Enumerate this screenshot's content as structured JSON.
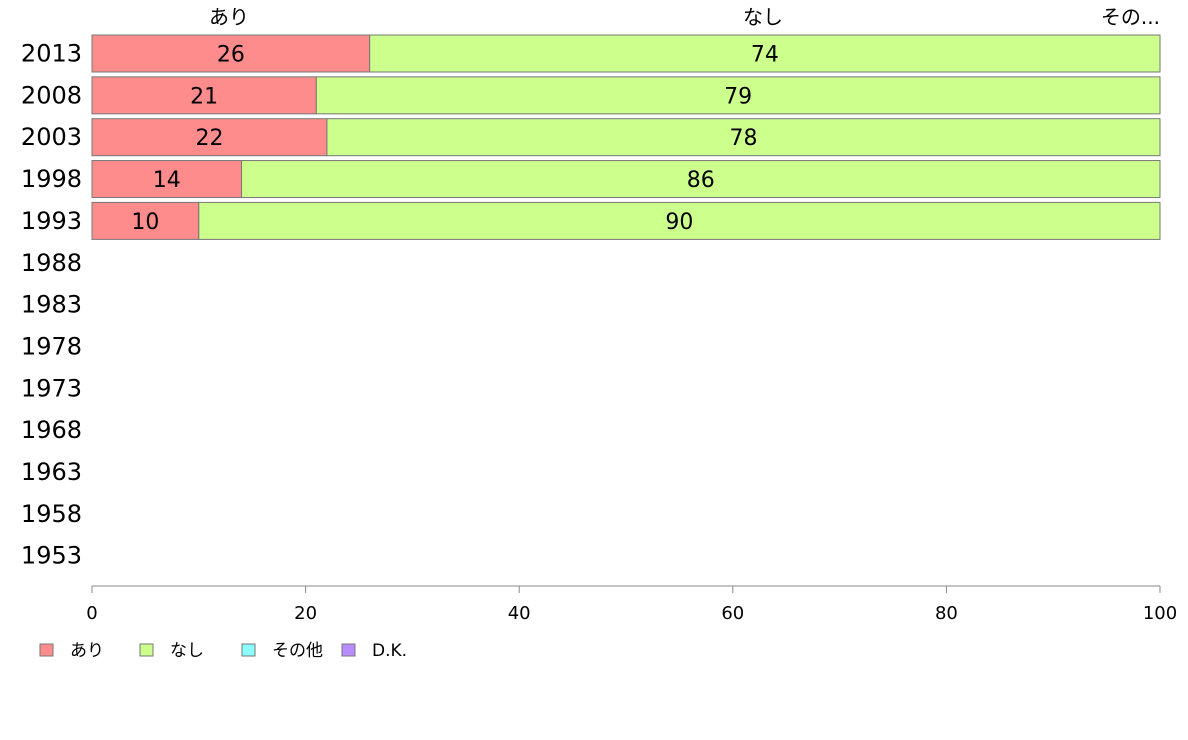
{
  "chart_data": {
    "type": "bar",
    "orientation": "horizontal",
    "stacked": true,
    "categories": [
      "2013",
      "2008",
      "2003",
      "1998",
      "1993",
      "1988",
      "1983",
      "1978",
      "1973",
      "1968",
      "1963",
      "1958",
      "1953"
    ],
    "series": [
      {
        "name": "あり",
        "color": "#ff8c8c",
        "values": [
          26,
          21,
          22,
          14,
          10,
          null,
          null,
          null,
          null,
          null,
          null,
          null,
          null
        ]
      },
      {
        "name": "なし",
        "color": "#ccff8c",
        "values": [
          74,
          79,
          78,
          86,
          90,
          null,
          null,
          null,
          null,
          null,
          null,
          null,
          null
        ]
      },
      {
        "name": "その他",
        "color": "#8cffff",
        "values": [
          0,
          0,
          0,
          0,
          0,
          null,
          null,
          null,
          null,
          null,
          null,
          null,
          null
        ]
      },
      {
        "name": "D.K.",
        "color": "#b98cff",
        "values": [
          0,
          0,
          0,
          0,
          0,
          null,
          null,
          null,
          null,
          null,
          null,
          null,
          null
        ]
      }
    ],
    "top_labels": [
      "あり",
      "なし",
      "その..."
    ],
    "xlim": [
      0,
      100
    ],
    "xticks": [
      0,
      20,
      40,
      60,
      80,
      100
    ],
    "grid": false,
    "legend_position": "bottom-left"
  }
}
